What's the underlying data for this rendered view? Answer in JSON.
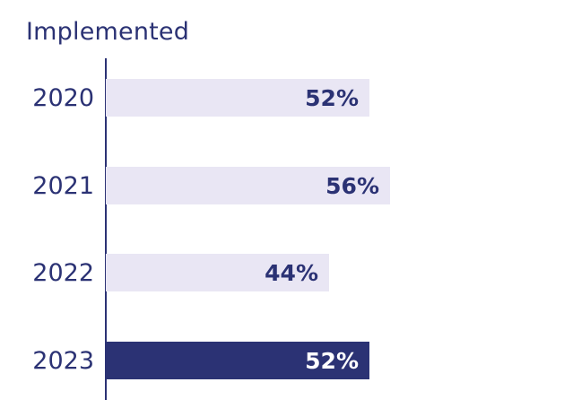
{
  "chart_data": {
    "type": "bar",
    "orientation": "horizontal",
    "title": "Implemented",
    "categories": [
      "2020",
      "2021",
      "2022",
      "2023"
    ],
    "values": [
      52,
      56,
      44,
      52
    ],
    "value_labels": [
      "52%",
      "56%",
      "44%",
      "52%"
    ],
    "xlabel": "",
    "ylabel": "",
    "unit": "%",
    "grid": false,
    "legend": null,
    "highlight_category": "2023"
  },
  "colors": {
    "text": "#2b3274",
    "bar_default": "#e9e6f4",
    "bar_highlight": "#2b3274",
    "label_on_highlight": "#ffffff"
  }
}
